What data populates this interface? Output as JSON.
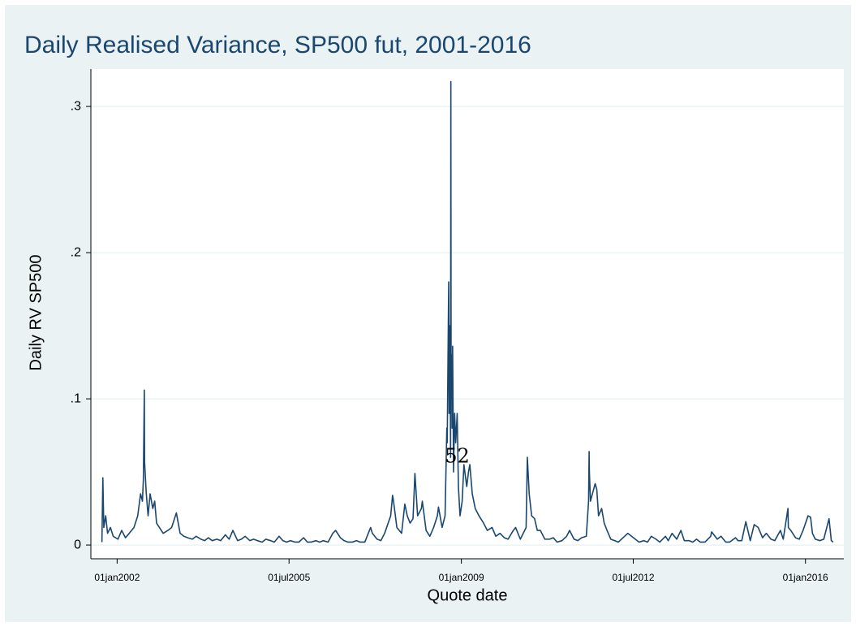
{
  "chart_data": {
    "type": "line",
    "title": "Daily Realised Variance, SP500 fut, 2001-2016",
    "x_label": "Quote date",
    "y_label": "Daily RV SP500",
    "annotation": {
      "text": "52",
      "x": "2008-12-01",
      "y": 0.06
    },
    "xlim": [
      "2001-06-20",
      "2016-10-12"
    ],
    "xticks": [
      {
        "value": "2002-01-01",
        "label": "01jan2002"
      },
      {
        "value": "2005-07-01",
        "label": "01jul2005"
      },
      {
        "value": "2009-01-01",
        "label": "01jan2009"
      },
      {
        "value": "2012-07-01",
        "label": "01jul2012"
      },
      {
        "value": "2016-01-01",
        "label": "01jan2016"
      }
    ],
    "ylim": [
      -0.0094,
      0.3256
    ],
    "yticks": [
      0,
      {
        "value": 0.1,
        "label": ".1"
      },
      {
        "value": 0.2,
        "label": ".2"
      },
      {
        "value": 0.3,
        "label": ".3"
      }
    ],
    "grid": true,
    "x": [
      "2001-09-10",
      "2001-09-17",
      "2001-09-24",
      "2001-10-08",
      "2001-10-22",
      "2001-11-12",
      "2001-12-03",
      "2002-01-07",
      "2002-02-04",
      "2002-03-04",
      "2002-04-01",
      "2002-05-06",
      "2002-06-03",
      "2002-06-24",
      "2002-07-08",
      "2002-07-15",
      "2002-07-22",
      "2002-07-24",
      "2002-08-05",
      "2002-08-19",
      "2002-09-03",
      "2002-09-23",
      "2002-10-07",
      "2002-10-21",
      "2002-11-11",
      "2002-12-09",
      "2003-01-13",
      "2003-02-10",
      "2003-03-17",
      "2003-04-14",
      "2003-05-12",
      "2003-06-09",
      "2003-07-14",
      "2003-08-11",
      "2003-09-15",
      "2003-10-13",
      "2003-11-10",
      "2003-12-08",
      "2004-01-12",
      "2004-02-09",
      "2004-03-15",
      "2004-04-12",
      "2004-05-10",
      "2004-06-14",
      "2004-07-12",
      "2004-08-09",
      "2004-09-13",
      "2004-10-11",
      "2004-11-08",
      "2004-12-13",
      "2005-01-10",
      "2005-02-14",
      "2005-03-14",
      "2005-04-18",
      "2005-05-16",
      "2005-06-13",
      "2005-07-11",
      "2005-08-15",
      "2005-09-12",
      "2005-10-17",
      "2005-11-14",
      "2005-12-12",
      "2006-01-16",
      "2006-02-13",
      "2006-03-13",
      "2006-04-17",
      "2006-05-22",
      "2006-06-12",
      "2006-07-17",
      "2006-08-14",
      "2006-09-11",
      "2006-10-16",
      "2006-11-13",
      "2006-12-11",
      "2007-01-15",
      "2007-02-27",
      "2007-03-12",
      "2007-04-16",
      "2007-05-14",
      "2007-06-11",
      "2007-07-26",
      "2007-08-09",
      "2007-08-16",
      "2007-09-10",
      "2007-10-15",
      "2007-11-08",
      "2007-11-26",
      "2007-12-17",
      "2008-01-08",
      "2008-01-22",
      "2008-02-11",
      "2008-03-10",
      "2008-03-17",
      "2008-04-14",
      "2008-05-12",
      "2008-06-09",
      "2008-07-07",
      "2008-07-15",
      "2008-08-11",
      "2008-09-02",
      "2008-09-15",
      "2008-09-18",
      "2008-09-29",
      "2008-10-02",
      "2008-10-07",
      "2008-10-10",
      "2008-10-13",
      "2008-10-15",
      "2008-10-17",
      "2008-10-22",
      "2008-10-24",
      "2008-10-28",
      "2008-11-04",
      "2008-11-12",
      "2008-11-20",
      "2008-12-01",
      "2008-12-10",
      "2008-12-22",
      "2009-01-07",
      "2009-01-20",
      "2009-02-10",
      "2009-02-23",
      "2009-03-05",
      "2009-03-23",
      "2009-04-14",
      "2009-05-12",
      "2009-06-15",
      "2009-07-13",
      "2009-08-17",
      "2009-09-14",
      "2009-10-15",
      "2009-11-16",
      "2009-12-14",
      "2010-01-22",
      "2010-02-08",
      "2010-03-15",
      "2010-04-27",
      "2010-05-06",
      "2010-05-20",
      "2010-06-07",
      "2010-06-29",
      "2010-07-19",
      "2010-08-11",
      "2010-09-13",
      "2010-10-18",
      "2010-11-15",
      "2010-12-13",
      "2011-01-18",
      "2011-02-22",
      "2011-03-16",
      "2011-04-18",
      "2011-05-16",
      "2011-06-13",
      "2011-07-18",
      "2011-08-04",
      "2011-08-08",
      "2011-08-10",
      "2011-08-18",
      "2011-09-22",
      "2011-10-04",
      "2011-10-17",
      "2011-11-09",
      "2011-11-28",
      "2011-12-19",
      "2012-01-16",
      "2012-02-13",
      "2012-03-12",
      "2012-04-16",
      "2012-05-21",
      "2012-06-18",
      "2012-07-16",
      "2012-08-13",
      "2012-09-17",
      "2012-10-15",
      "2012-11-12",
      "2012-12-17",
      "2013-01-14",
      "2013-02-25",
      "2013-03-18",
      "2013-04-15",
      "2013-05-20",
      "2013-06-20",
      "2013-07-15",
      "2013-08-19",
      "2013-09-16",
      "2013-10-14",
      "2013-11-11",
      "2013-12-16",
      "2014-01-27",
      "2014-02-03",
      "2014-03-17",
      "2014-04-14",
      "2014-05-19",
      "2014-06-16",
      "2014-07-31",
      "2014-08-18",
      "2014-09-15",
      "2014-10-15",
      "2014-11-17",
      "2014-12-16",
      "2015-01-15",
      "2015-02-16",
      "2015-03-16",
      "2015-04-20",
      "2015-05-18",
      "2015-06-29",
      "2015-07-20",
      "2015-08-24",
      "2015-08-27",
      "2015-09-14",
      "2015-10-19",
      "2015-11-16",
      "2015-12-14",
      "2016-01-13",
      "2016-01-20",
      "2016-02-08",
      "2016-02-22",
      "2016-03-14",
      "2016-04-18",
      "2016-05-16",
      "2016-06-24",
      "2016-07-11",
      "2016-07-25"
    ],
    "series": [
      {
        "name": "Daily RV SP500",
        "color": "#1a476f",
        "values": [
          0.002,
          0.046,
          0.012,
          0.02,
          0.008,
          0.012,
          0.006,
          0.004,
          0.01,
          0.005,
          0.008,
          0.012,
          0.02,
          0.035,
          0.03,
          0.045,
          0.106,
          0.057,
          0.036,
          0.02,
          0.035,
          0.025,
          0.03,
          0.015,
          0.012,
          0.008,
          0.01,
          0.012,
          0.022,
          0.008,
          0.006,
          0.005,
          0.004,
          0.006,
          0.004,
          0.003,
          0.005,
          0.003,
          0.004,
          0.003,
          0.007,
          0.004,
          0.01,
          0.003,
          0.004,
          0.006,
          0.003,
          0.004,
          0.003,
          0.002,
          0.004,
          0.003,
          0.002,
          0.006,
          0.003,
          0.002,
          0.003,
          0.002,
          0.002,
          0.005,
          0.002,
          0.002,
          0.003,
          0.002,
          0.003,
          0.002,
          0.008,
          0.01,
          0.005,
          0.003,
          0.002,
          0.002,
          0.003,
          0.002,
          0.002,
          0.012,
          0.008,
          0.004,
          0.003,
          0.008,
          0.02,
          0.034,
          0.03,
          0.012,
          0.008,
          0.028,
          0.02,
          0.015,
          0.018,
          0.049,
          0.02,
          0.025,
          0.03,
          0.01,
          0.006,
          0.012,
          0.02,
          0.026,
          0.012,
          0.02,
          0.08,
          0.07,
          0.18,
          0.09,
          0.15,
          0.12,
          0.06,
          0.317,
          0.1,
          0.13,
          0.08,
          0.136,
          0.05,
          0.09,
          0.07,
          0.09,
          0.04,
          0.02,
          0.03,
          0.055,
          0.04,
          0.05,
          0.055,
          0.035,
          0.025,
          0.02,
          0.015,
          0.01,
          0.012,
          0.006,
          0.008,
          0.005,
          0.004,
          0.01,
          0.012,
          0.004,
          0.012,
          0.06,
          0.035,
          0.02,
          0.018,
          0.01,
          0.01,
          0.004,
          0.004,
          0.005,
          0.002,
          0.003,
          0.006,
          0.01,
          0.004,
          0.003,
          0.005,
          0.006,
          0.03,
          0.064,
          0.05,
          0.03,
          0.042,
          0.038,
          0.02,
          0.025,
          0.015,
          0.01,
          0.004,
          0.003,
          0.002,
          0.005,
          0.008,
          0.006,
          0.004,
          0.002,
          0.003,
          0.002,
          0.006,
          0.004,
          0.002,
          0.006,
          0.003,
          0.008,
          0.004,
          0.01,
          0.003,
          0.003,
          0.002,
          0.004,
          0.002,
          0.002,
          0.006,
          0.009,
          0.004,
          0.006,
          0.002,
          0.002,
          0.005,
          0.003,
          0.003,
          0.016,
          0.003,
          0.014,
          0.012,
          0.005,
          0.008,
          0.004,
          0.003,
          0.01,
          0.004,
          0.025,
          0.012,
          0.01,
          0.005,
          0.004,
          0.01,
          0.018,
          0.02,
          0.019,
          0.008,
          0.004,
          0.003,
          0.004,
          0.018,
          0.003,
          0.002
        ]
      }
    ]
  }
}
